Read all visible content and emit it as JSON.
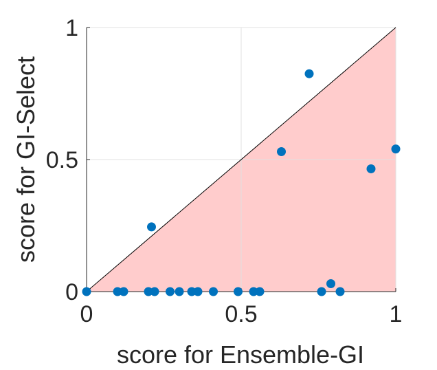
{
  "chart_data": {
    "type": "scatter",
    "title": "",
    "xlabel": "score for Ensemble-GI",
    "ylabel": "score for GI-Select",
    "xlim": [
      0,
      1
    ],
    "ylim": [
      0,
      1
    ],
    "xticks": [
      0,
      0.5,
      1
    ],
    "yticks": [
      0,
      0.5,
      1
    ],
    "xtick_labels": [
      "0",
      "0.5",
      "1"
    ],
    "ytick_labels": [
      "0",
      "0.5",
      "1"
    ],
    "grid": true,
    "diagonal": "y = x",
    "shaded_region": "below diagonal",
    "colors": {
      "points": "#0072BD",
      "shade": "#FFCCCC",
      "diagonal": "#000000",
      "grid": "#E0E0E0",
      "axes": "#262626"
    },
    "points": [
      {
        "x": 0.0,
        "y": 0.0
      },
      {
        "x": 0.1,
        "y": 0.0
      },
      {
        "x": 0.12,
        "y": 0.0
      },
      {
        "x": 0.2,
        "y": 0.0
      },
      {
        "x": 0.22,
        "y": 0.0
      },
      {
        "x": 0.21,
        "y": 0.245
      },
      {
        "x": 0.27,
        "y": 0.0
      },
      {
        "x": 0.3,
        "y": 0.0
      },
      {
        "x": 0.34,
        "y": 0.0
      },
      {
        "x": 0.36,
        "y": 0.0
      },
      {
        "x": 0.41,
        "y": 0.0
      },
      {
        "x": 0.49,
        "y": 0.0
      },
      {
        "x": 0.54,
        "y": 0.0
      },
      {
        "x": 0.56,
        "y": 0.0
      },
      {
        "x": 0.63,
        "y": 0.53
      },
      {
        "x": 0.72,
        "y": 0.825
      },
      {
        "x": 0.76,
        "y": 0.0
      },
      {
        "x": 0.79,
        "y": 0.03
      },
      {
        "x": 0.82,
        "y": 0.0
      },
      {
        "x": 0.92,
        "y": 0.465
      },
      {
        "x": 1.0,
        "y": 0.54
      }
    ]
  }
}
